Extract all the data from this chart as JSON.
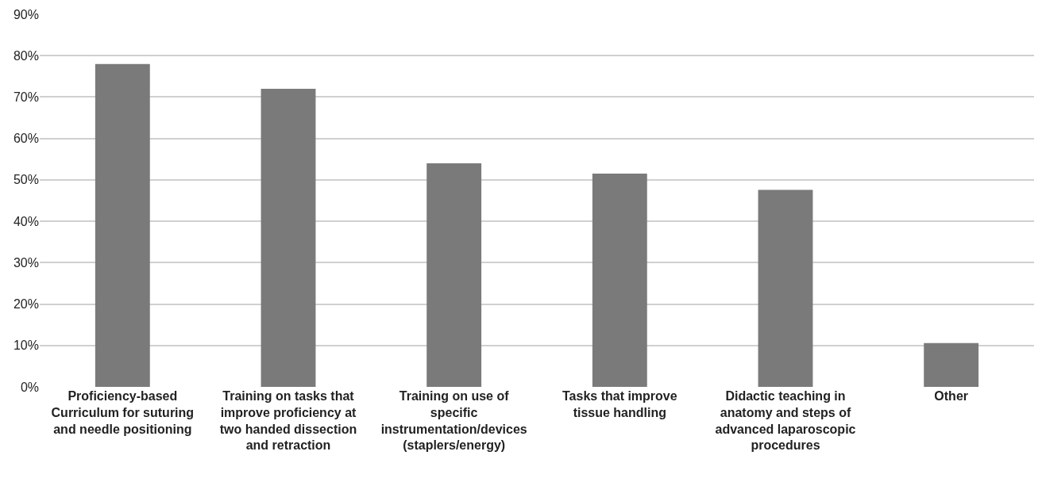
{
  "chart_data": {
    "type": "bar",
    "categories": [
      "Proficiency-based Curriculum for suturing and needle positioning",
      "Training on tasks that improve proficiency at two handed dissection and retraction",
      "Training on use of specific instrumentation/devices (staplers/energy)",
      "Tasks that improve tissue handling",
      "Didactic teaching in anatomy and steps of advanced laparoscopic procedures",
      "Other"
    ],
    "values": [
      78,
      72,
      54,
      51.5,
      47.6,
      10.6
    ],
    "color": "#7a7a7a",
    "ylim": [
      0,
      90
    ],
    "yticks": [
      {
        "value": 0,
        "label": "0%"
      },
      {
        "value": 10,
        "label": "10%"
      },
      {
        "value": 20,
        "label": "20%"
      },
      {
        "value": 30,
        "label": "30%"
      },
      {
        "value": 40,
        "label": "40%"
      },
      {
        "value": 50,
        "label": "50%"
      },
      {
        "value": 60,
        "label": "60%"
      },
      {
        "value": 70,
        "label": "70%"
      },
      {
        "value": 80,
        "label": "80%"
      },
      {
        "value": 90,
        "label": "90%"
      }
    ],
    "grid": "y"
  }
}
